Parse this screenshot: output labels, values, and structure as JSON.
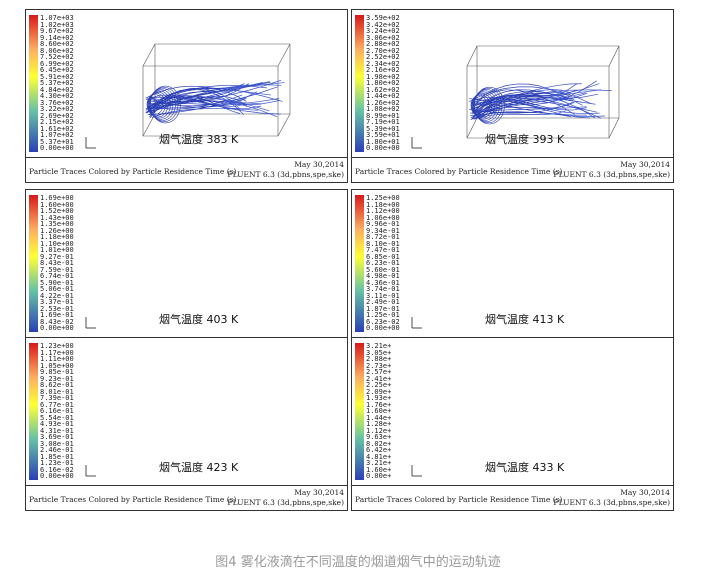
{
  "figure_caption": "图4 雾化液滴在不同温度的烟道烟气中的运动轨迹",
  "common": {
    "footer_left": "Particle Traces Colored by Particle Residence Time (s)",
    "date": "May 30,2014",
    "software": "FLUENT 6.3 (3d,pbns,spe,ske)"
  },
  "colors": {
    "bar_top": "#d7191c",
    "bar_mid_high": "#fdae61",
    "bar_mid": "#ffff33",
    "bar_mid_low": "#66c2a5",
    "bar_bottom": "#2b3fb5"
  },
  "panels": [
    {
      "label": "烟气温度 383 K",
      "ticks": [
        "1.07e+03",
        "1.02e+03",
        "9.67e+02",
        "9.14e+02",
        "8.60e+02",
        "8.06e+02",
        "7.52e+02",
        "6.99e+02",
        "6.45e+02",
        "5.91e+02",
        "5.37e+02",
        "4.84e+02",
        "4.30e+02",
        "3.76e+02",
        "3.22e+02",
        "2.69e+02",
        "2.15e+02",
        "1.61e+02",
        "1.07e+02",
        "5.37e+01",
        "0.00e+00"
      ]
    },
    {
      "label": "烟气温度 393 K",
      "ticks": [
        "3.59e+02",
        "3.42e+02",
        "3.24e+02",
        "3.06e+02",
        "2.88e+02",
        "2.70e+02",
        "2.52e+02",
        "2.34e+02",
        "2.16e+02",
        "1.98e+02",
        "1.80e+02",
        "1.62e+02",
        "1.44e+02",
        "1.26e+02",
        "1.08e+02",
        "8.99e+01",
        "7.19e+01",
        "5.39e+01",
        "3.59e+01",
        "1.80e+01",
        "0.00e+00"
      ]
    },
    {
      "label": "烟气温度 403 K",
      "ticks": [
        "1.69e+00",
        "1.60e+00",
        "1.52e+00",
        "1.43e+00",
        "1.35e+00",
        "1.26e+00",
        "1.18e+00",
        "1.10e+00",
        "1.01e+00",
        "9.27e-01",
        "8.43e-01",
        "7.59e-01",
        "6.74e-01",
        "5.90e-01",
        "5.06e-01",
        "4.22e-01",
        "3.37e-01",
        "2.53e-01",
        "1.69e-01",
        "8.43e-02",
        "0.00e+00"
      ]
    },
    {
      "label": "烟气温度 413 K",
      "ticks": [
        "1.25e+00",
        "1.18e+00",
        "1.12e+00",
        "1.06e+00",
        "9.96e-01",
        "9.34e-01",
        "8.72e-01",
        "8.10e-01",
        "7.47e-01",
        "6.85e-01",
        "6.23e-01",
        "5.60e-01",
        "4.98e-01",
        "4.36e-01",
        "3.74e-01",
        "3.11e-01",
        "2.49e-01",
        "1.87e-01",
        "1.25e-01",
        "6.23e-02",
        "0.00e+00"
      ]
    },
    {
      "label": "烟气温度 423 K",
      "ticks": [
        "1.23e+00",
        "1.17e+00",
        "1.11e+00",
        "1.05e+00",
        "9.85e-01",
        "9.23e-01",
        "8.62e-01",
        "8.01e-01",
        "7.39e-01",
        "6.77e-01",
        "6.16e-01",
        "5.54e-01",
        "4.93e-01",
        "4.31e-01",
        "3.69e-01",
        "3.08e-01",
        "2.46e-01",
        "1.85e-01",
        "1.23e-01",
        "6.16e-02",
        "0.00e+00"
      ]
    },
    {
      "label": "烟气温度 433 K",
      "ticks": [
        "3.21e+",
        "3.05e+",
        "2.88e+",
        "2.73e+",
        "2.57e+",
        "2.41e+",
        "2.25e+",
        "2.09e+",
        "1.93e+",
        "1.76e+",
        "1.60e+",
        "1.44e+",
        "1.28e+",
        "1.12e+",
        "9.63e+",
        "8.02e+",
        "6.42e+",
        "4.81e+",
        "3.21e+",
        "1.60e+",
        "0.00e+"
      ]
    }
  ]
}
